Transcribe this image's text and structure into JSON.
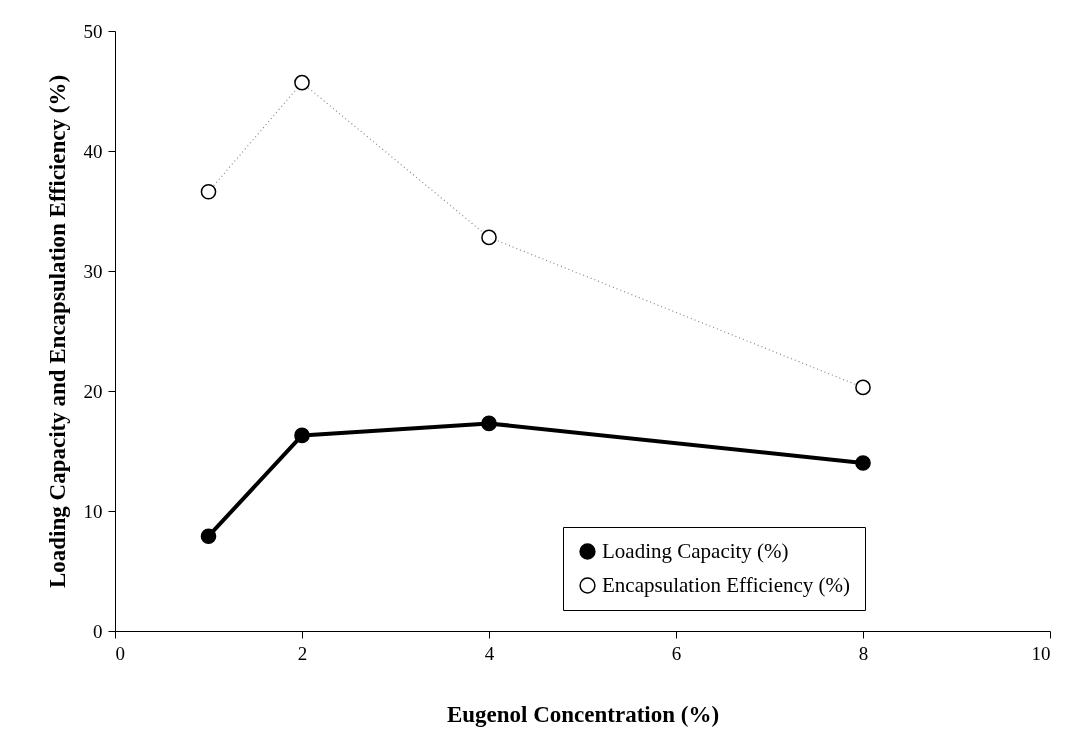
{
  "chart_data": {
    "type": "line",
    "xlabel": "Eugenol Concentration (%)",
    "ylabel": "Loading Capacity and Encapsulation Efficiency (%)",
    "x": [
      1,
      2,
      4,
      8
    ],
    "series": [
      {
        "name": "Loading Capacity (%)",
        "color": "#000000",
        "line_style": "solid",
        "values": [
          7.9,
          16.3,
          17.3,
          14.0
        ]
      },
      {
        "name": "Encapsulation Efficiency (%)",
        "color": "#000000",
        "line_style": "dotted",
        "values": [
          36.6,
          45.7,
          32.8,
          20.3
        ]
      }
    ],
    "xlim": [
      0,
      10
    ],
    "xticks": [
      0,
      2,
      4,
      6,
      8,
      10
    ],
    "ylim": [
      0,
      50
    ],
    "yticks": [
      0,
      10,
      20,
      30,
      40,
      50
    ],
    "grid": false,
    "legend": "bottom right",
    "marker": "circle"
  }
}
